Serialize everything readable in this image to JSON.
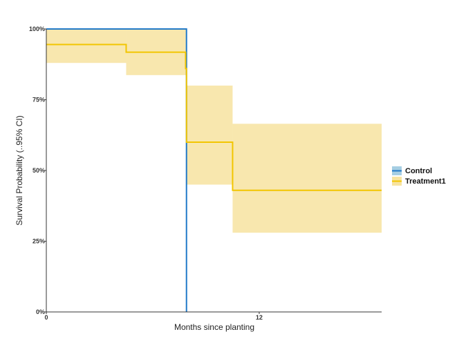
{
  "chart_data": {
    "type": "line",
    "step": true,
    "xlabel": "Months since planting",
    "ylabel": "Survival Probability (..95% CI)",
    "xlim": [
      0,
      18.9
    ],
    "ylim": [
      0,
      1
    ],
    "x_ticks": [
      0,
      12
    ],
    "y_ticks": [
      {
        "value": 0,
        "label": "0%"
      },
      {
        "value": 0.25,
        "label": "25%"
      },
      {
        "value": 0.5,
        "label": "50%"
      },
      {
        "value": 0.75,
        "label": "75%"
      },
      {
        "value": 1,
        "label": "100%"
      }
    ],
    "grid": false,
    "legend_position": "right",
    "series": [
      {
        "name": "Control",
        "color": "#1f78c8",
        "ci_color": "#a6cee3",
        "points": [
          [
            0,
            1.0
          ],
          [
            7.9,
            1.0
          ],
          [
            7.9,
            0.0
          ]
        ],
        "ci": []
      },
      {
        "name": "Treatment1",
        "color": "#f2c500",
        "ci_color": "#f7e3a0",
        "points": [
          [
            0,
            0.945
          ],
          [
            4.5,
            0.945
          ],
          [
            4.5,
            0.918
          ],
          [
            7.85,
            0.918
          ],
          [
            7.85,
            0.86
          ],
          [
            7.9,
            0.86
          ],
          [
            7.9,
            0.6
          ],
          [
            10.5,
            0.6
          ],
          [
            10.5,
            0.43
          ],
          [
            18.9,
            0.43
          ]
        ],
        "ci": [
          {
            "x0": 0,
            "x1": 4.5,
            "lo": 0.88,
            "hi": 1.0
          },
          {
            "x0": 4.5,
            "x1": 7.9,
            "lo": 0.837,
            "hi": 1.0
          },
          {
            "x0": 7.9,
            "x1": 10.5,
            "lo": 0.45,
            "hi": 0.8
          },
          {
            "x0": 10.5,
            "x1": 18.9,
            "lo": 0.28,
            "hi": 0.665
          }
        ]
      }
    ]
  }
}
